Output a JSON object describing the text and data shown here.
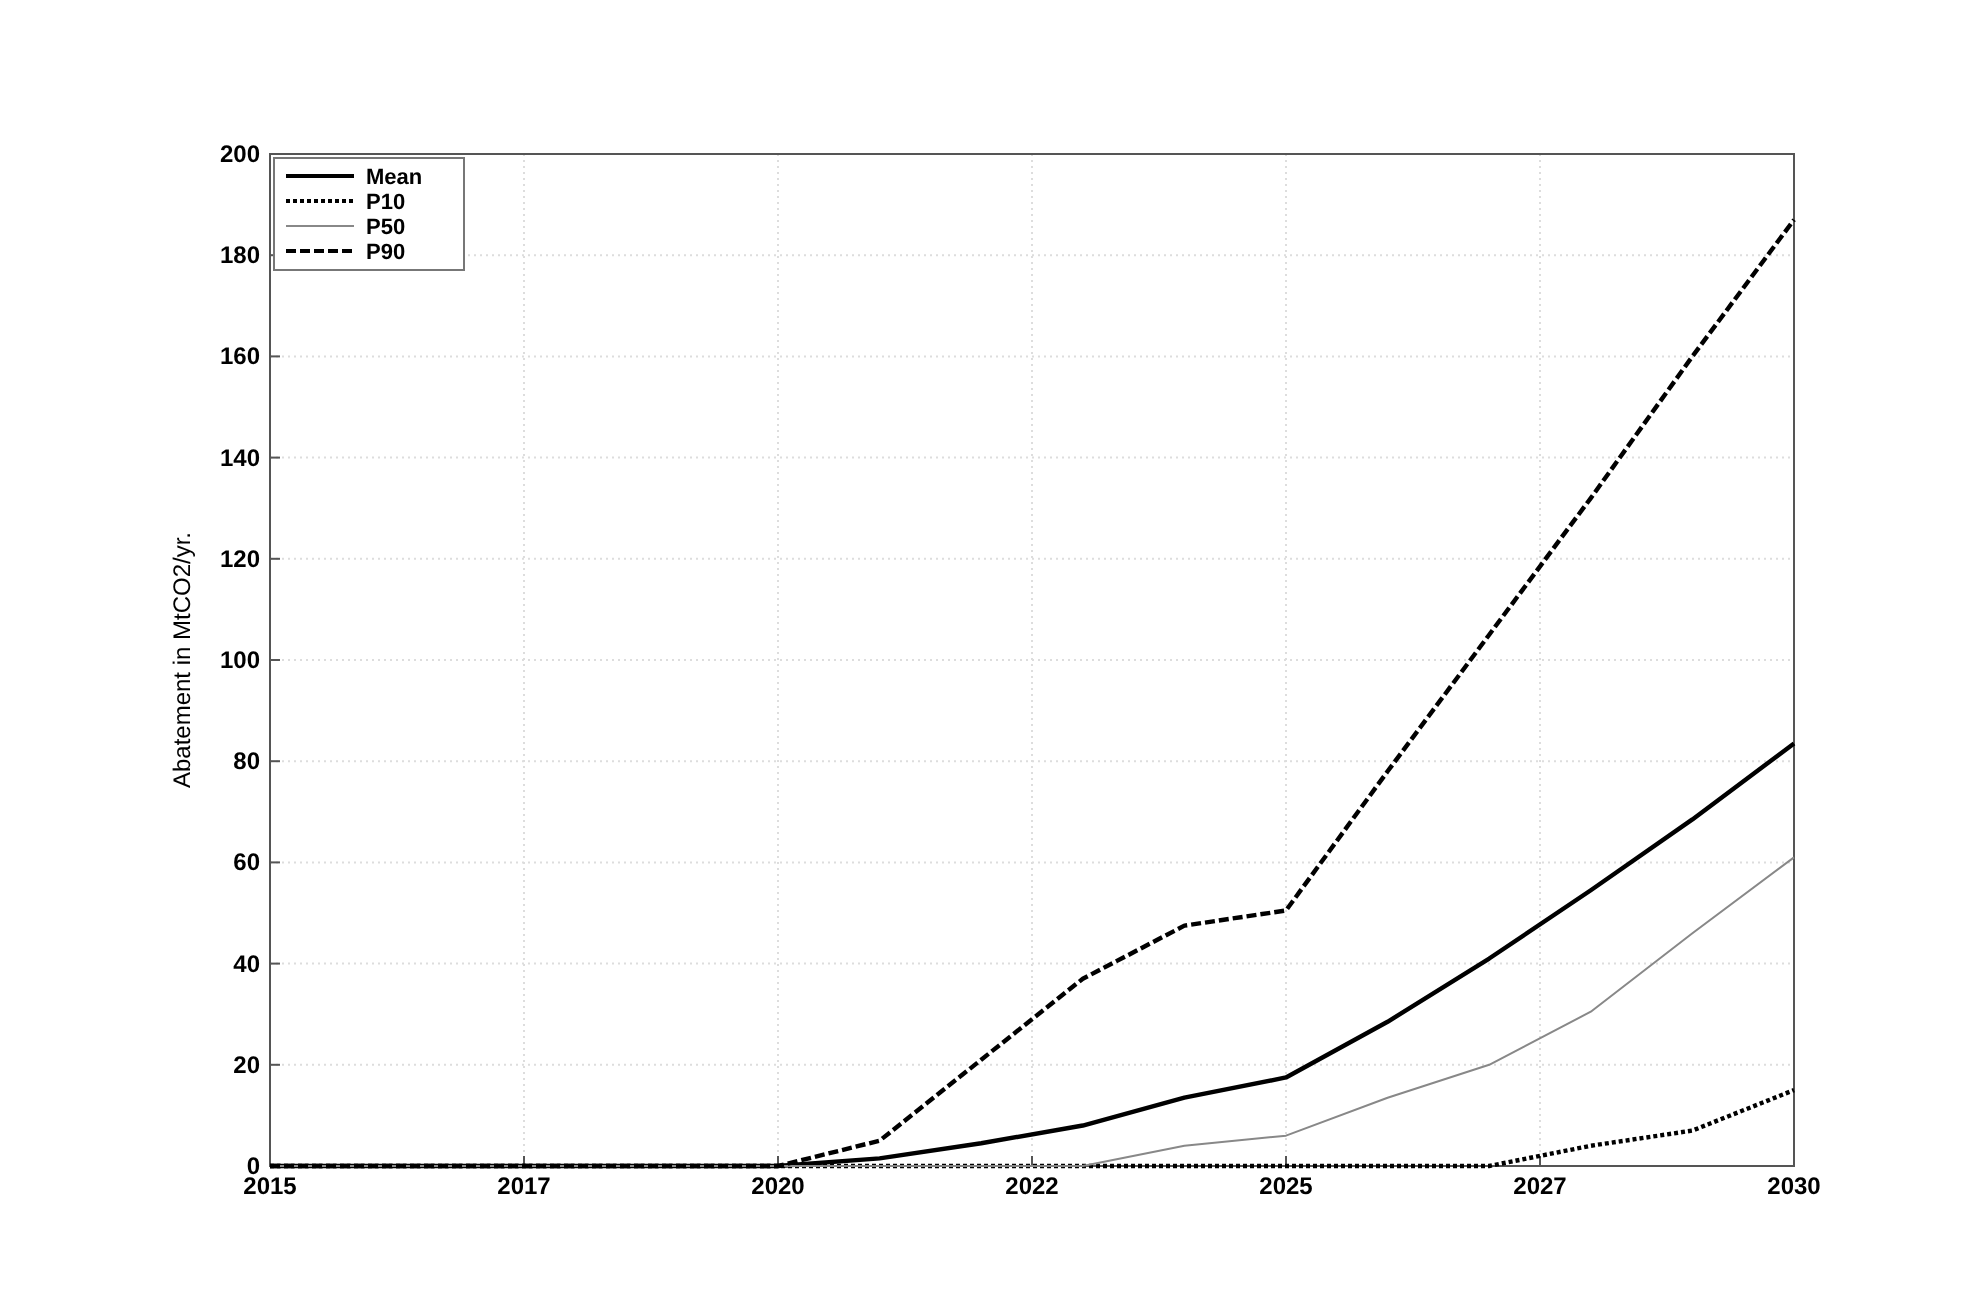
{
  "chart_data": {
    "type": "line",
    "ylabel": "Abatement in MtCO2/yr.",
    "x": [
      2015,
      2016,
      2017,
      2018,
      2019,
      2020,
      2021,
      2022,
      2023,
      2024,
      2025,
      2026,
      2027,
      2028,
      2029,
      2030
    ],
    "series": [
      {
        "name": "Mean",
        "color": "#000000",
        "line_style": "solid",
        "values": [
          0,
          0,
          0,
          0,
          0,
          0,
          1.5,
          4.5,
          8,
          13.5,
          17.5,
          28.5,
          41,
          54.5,
          68.5,
          83.5
        ]
      },
      {
        "name": "P10",
        "color": "#000000",
        "line_style": "dotted",
        "values": [
          0,
          0,
          0,
          0,
          0,
          0,
          0,
          0,
          0,
          0,
          0,
          0,
          0,
          4,
          7,
          15
        ]
      },
      {
        "name": "P50",
        "color": "#888888",
        "line_style": "solid",
        "values": [
          0,
          0,
          0,
          0,
          0,
          0,
          0,
          0,
          0,
          4,
          6,
          13.5,
          20,
          30.5,
          46,
          61
        ]
      },
      {
        "name": "P90",
        "color": "#000000",
        "line_style": "dashed",
        "values": [
          0,
          0,
          0,
          0,
          0,
          0,
          5,
          21,
          37,
          47.5,
          50.5,
          78,
          105,
          132,
          160,
          187
        ]
      }
    ],
    "xlim": [
      2015,
      2030
    ],
    "xticks": [
      2015,
      {
        "value": 2017.5,
        "label": "2017"
      },
      2020,
      {
        "value": 2022.5,
        "label": "2022"
      },
      2025,
      {
        "value": 2027.5,
        "label": "2027"
      },
      2030
    ],
    "ylim": [
      0,
      200
    ],
    "yticks": [
      0,
      20,
      40,
      60,
      80,
      100,
      120,
      140,
      160,
      180,
      200
    ],
    "grid": true,
    "legend": "top left",
    "marker": "none"
  }
}
